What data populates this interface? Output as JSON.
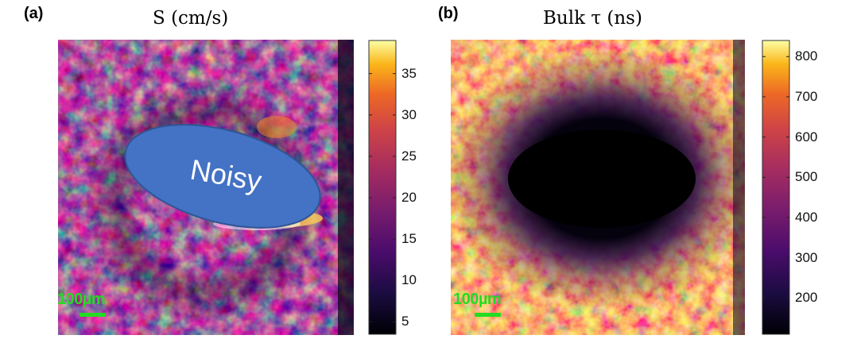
{
  "panels": [
    {
      "letter": "(a)",
      "title": "S (cm/s)",
      "colorbar": {
        "ticks": [
          "35",
          "30",
          "25",
          "20",
          "15",
          "10",
          "5"
        ],
        "tick_values": [
          35,
          30,
          25,
          20,
          15,
          10,
          5
        ],
        "range": [
          3.5,
          39
        ]
      },
      "scalebar_label": "100µm",
      "overlay_label": "Noisy"
    },
    {
      "letter": "(b)",
      "title": "Bulk τ (ns)",
      "colorbar": {
        "ticks": [
          "800",
          "700",
          "600",
          "500",
          "400",
          "300",
          "200"
        ],
        "tick_values": [
          800,
          700,
          600,
          500,
          400,
          300,
          200
        ],
        "range": [
          110,
          840
        ]
      },
      "scalebar_label": "100µm"
    }
  ],
  "colors": {
    "scalebar": "#22dd22",
    "overlay_fill": "#4472c4",
    "overlay_border": "#2f5597",
    "overlay_text": "#ffffff",
    "colormap": "inferno-like (black-purple-orange-yellow)"
  }
}
